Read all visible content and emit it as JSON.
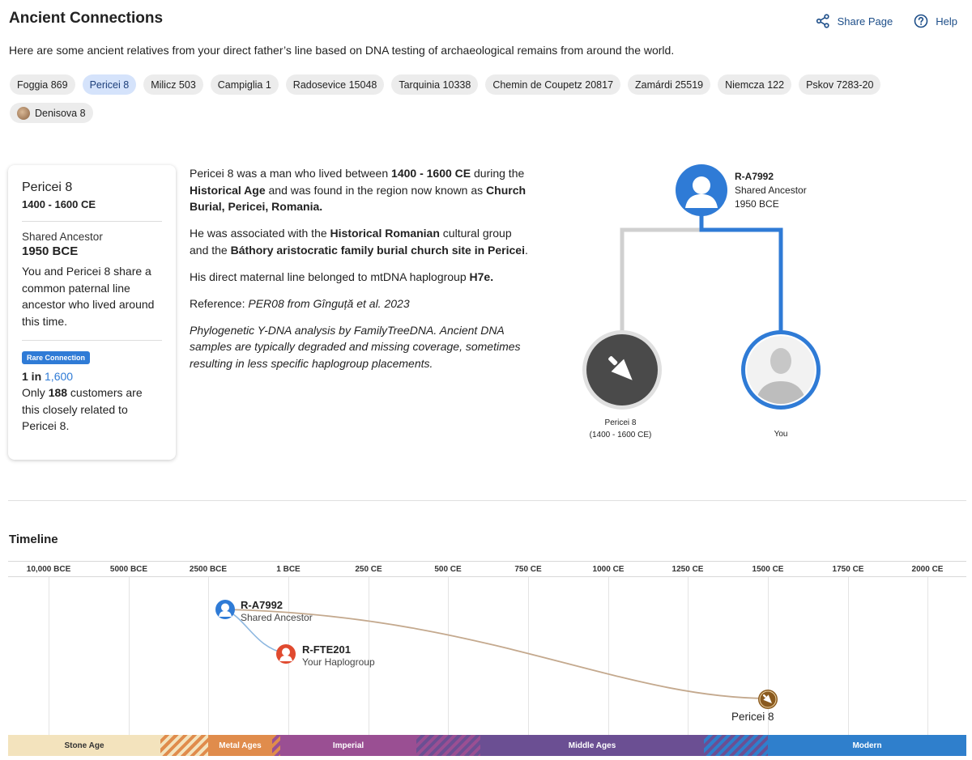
{
  "header": {
    "title": "Ancient Connections",
    "share_label": "Share Page",
    "help_label": "Help",
    "intro": "Here are some ancient relatives from your direct father’s line based on DNA testing of archaeological remains from around the world."
  },
  "chips": [
    {
      "label": "Foggia 869",
      "active": false
    },
    {
      "label": "Pericei 8",
      "active": true
    },
    {
      "label": "Milicz 503",
      "active": false
    },
    {
      "label": "Campiglia 1",
      "active": false
    },
    {
      "label": "Radosevice 15048",
      "active": false
    },
    {
      "label": "Tarquinia 10338",
      "active": false
    },
    {
      "label": "Chemin de Coupetz 20817",
      "active": false
    },
    {
      "label": "Zamárdi 25519",
      "active": false
    },
    {
      "label": "Niemcza 122",
      "active": false
    },
    {
      "label": "Pskov 7283-20",
      "active": false
    },
    {
      "label": "Denisova 8",
      "active": false,
      "avatar": true
    }
  ],
  "card": {
    "name": "Pericei 8",
    "dates": "1400 - 1600 CE",
    "shared_label": "Shared Ancestor",
    "shared_date": "1950 BCE",
    "shared_text": "You and Pericei 8 share a common paternal line ancestor who lived around this time.",
    "rare_badge": "Rare Connection",
    "odds_prefix": "1 in ",
    "odds_value": "1,600",
    "customers_pre": "Only ",
    "customers_count": "188",
    "customers_post": " customers are this closely related to Pericei 8."
  },
  "description": {
    "p1_a": "Pericei 8 was a man who lived between ",
    "p1_b": "1400 - 1600 CE",
    "p1_c": " during the ",
    "p1_d": "Historical Age",
    "p1_e": " and was found in the region now known as ",
    "p1_f": "Church Burial, Pericei, Romania.",
    "p2_a": "He was associated with the ",
    "p2_b": "Historical Romanian",
    "p2_c": " cultural group and the ",
    "p2_d": "Báthory aristocratic family burial church site in Pericei",
    "p2_e": ".",
    "p3_a": "His direct maternal line belonged to mtDNA haplogroup ",
    "p3_b": "H7e.",
    "p4_a": "Reference: ",
    "p4_b": "PER08 from Gînguță et al. 2023",
    "p5": "Phylogenetic Y-DNA analysis by FamilyTreeDNA. Ancient DNA samples are typically degraded and missing coverage, sometimes resulting in less specific haplogroup placements."
  },
  "tree": {
    "ancestor_haplogroup": "R-A7992",
    "ancestor_label": "Shared Ancestor",
    "ancestor_date": "1950 BCE",
    "ancient_name": "Pericei 8",
    "ancient_dates": "(1400 - 1600 CE)",
    "you_label": "You"
  },
  "timeline": {
    "title": "Timeline",
    "ticks": [
      "10,000 BCE",
      "5000 BCE",
      "2500 BCE",
      "1 BCE",
      "250 CE",
      "500 CE",
      "750 CE",
      "1000 CE",
      "1250 CE",
      "1500 CE",
      "1750 CE",
      "2000 CE"
    ],
    "shared_haplogroup": "R-A7992",
    "shared_label": "Shared Ancestor",
    "your_haplogroup": "R-FTE201",
    "your_label": "Your Haplogroup",
    "ancient_name": "Pericei 8",
    "eras": [
      {
        "label": "Stone Age",
        "color": "#f3e3bd",
        "text_color": "#333"
      },
      {
        "label": "Metal Ages",
        "color": "#e08c4c",
        "text_color": "#ffffff"
      },
      {
        "label": "Imperial",
        "color": "#9a4f93",
        "text_color": "#ffffff"
      },
      {
        "label": "Middle Ages",
        "color": "#6b4f93",
        "text_color": "#ffffff"
      },
      {
        "label": "Modern",
        "color": "#2f7fcc",
        "text_color": "#ffffff"
      }
    ]
  },
  "colors": {
    "accent_blue": "#2f7bd6",
    "link_blue": "#1d4e89",
    "ancient_node": "#4a4a4a",
    "ancient_timeline": "#8a5a1f",
    "your_haplo": "#e04a2f",
    "curve": "#c4a98e"
  }
}
